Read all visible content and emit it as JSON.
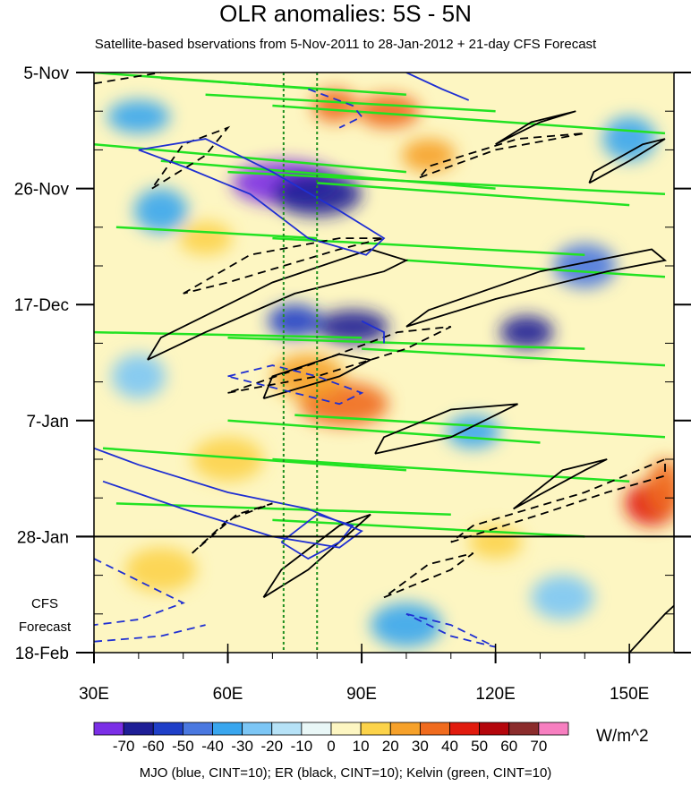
{
  "chart_data": {
    "type": "heatmap",
    "title": "OLR anomalies: 5S - 5N",
    "subtitle": "Satellite-based bservations from 5-Nov-2011 to 28-Jan-2012 + 21-day CFS Forecast",
    "x_tick_labels": [
      "30E",
      "60E",
      "90E",
      "120E",
      "150E"
    ],
    "x_ticks": [
      30,
      60,
      90,
      120,
      150
    ],
    "xlim": [
      30,
      160
    ],
    "y_tick_labels": [
      "5-Nov",
      "26-Nov",
      "17-Dec",
      "7-Jan",
      "28-Jan",
      "18-Feb"
    ],
    "y_ticks": [
      0,
      21,
      42,
      63,
      84,
      105
    ],
    "ylim": [
      0,
      105
    ],
    "observation_end_day": 84,
    "forecast_label_line1": "CFS",
    "forecast_label_line2": "Forecast",
    "reference_longitudes": [
      72.5,
      80
    ],
    "colorbar": {
      "levels": [
        "-70",
        "-60",
        "-50",
        "-40",
        "-30",
        "-20",
        "-10",
        "0",
        "10",
        "20",
        "30",
        "40",
        "50",
        "60",
        "70"
      ],
      "colors": [
        "#7b2fe6",
        "#1e1e96",
        "#1f3fc8",
        "#4a78e0",
        "#39a6ee",
        "#7cc6f5",
        "#b6e2f7",
        "#e9f7f7",
        "#fdf6c2",
        "#fcd34a",
        "#f6a12a",
        "#f06b1e",
        "#e11b0e",
        "#b4060c",
        "#8b2c2c",
        "#f77fc0"
      ],
      "units": "W/m^2"
    },
    "contours": {
      "legend": "MJO (blue, CINT=10); ER (black, CINT=10); Kelvin (green, CINT=10)",
      "mjo_color": "#1f2fd2",
      "er_color": "#000000",
      "kelvin_color": "#22e222"
    },
    "anomaly_features": [
      {
        "lon": 73,
        "day": 20,
        "value": -70,
        "rx": 12,
        "ry": 4
      },
      {
        "lon": 80,
        "day": 22,
        "value": -60,
        "rx": 10,
        "ry": 4
      },
      {
        "lon": 96,
        "day": 7,
        "value": 40,
        "rx": 7,
        "ry": 3
      },
      {
        "lon": 84,
        "day": 6,
        "value": 40,
        "rx": 5,
        "ry": 3
      },
      {
        "lon": 105,
        "day": 15,
        "value": 30,
        "rx": 6,
        "ry": 3
      },
      {
        "lon": 86,
        "day": 60,
        "value": 40,
        "rx": 10,
        "ry": 4
      },
      {
        "lon": 78,
        "day": 55,
        "value": 30,
        "rx": 8,
        "ry": 4
      },
      {
        "lon": 88,
        "day": 46,
        "value": -60,
        "rx": 8,
        "ry": 3
      },
      {
        "lon": 75,
        "day": 45,
        "value": -50,
        "rx": 6,
        "ry": 3
      },
      {
        "lon": 127,
        "day": 47,
        "value": -60,
        "rx": 6,
        "ry": 3
      },
      {
        "lon": 155,
        "day": 78,
        "value": 50,
        "rx": 6,
        "ry": 4
      },
      {
        "lon": 158,
        "day": 75,
        "value": 40,
        "rx": 4,
        "ry": 5
      },
      {
        "lon": 140,
        "day": 35,
        "value": -40,
        "rx": 7,
        "ry": 4
      },
      {
        "lon": 150,
        "day": 12,
        "value": -30,
        "rx": 6,
        "ry": 4
      },
      {
        "lon": 45,
        "day": 25,
        "value": -30,
        "rx": 6,
        "ry": 4
      },
      {
        "lon": 40,
        "day": 8,
        "value": -30,
        "rx": 7,
        "ry": 3
      },
      {
        "lon": 55,
        "day": 30,
        "value": 20,
        "rx": 6,
        "ry": 3
      },
      {
        "lon": 45,
        "day": 90,
        "value": 20,
        "rx": 8,
        "ry": 4
      },
      {
        "lon": 100,
        "day": 100,
        "value": -30,
        "rx": 8,
        "ry": 4
      },
      {
        "lon": 135,
        "day": 95,
        "value": -20,
        "rx": 7,
        "ry": 4
      },
      {
        "lon": 60,
        "day": 70,
        "value": 20,
        "rx": 8,
        "ry": 4
      },
      {
        "lon": 115,
        "day": 65,
        "value": -30,
        "rx": 6,
        "ry": 3
      },
      {
        "lon": 40,
        "day": 55,
        "value": -20,
        "rx": 6,
        "ry": 4
      },
      {
        "lon": 120,
        "day": 85,
        "value": 20,
        "rx": 6,
        "ry": 3
      }
    ],
    "er_contours": [
      {
        "dashed": false,
        "pts": [
          [
            42,
            52
          ],
          [
            55,
            47
          ],
          [
            75,
            40
          ],
          [
            95,
            36
          ],
          [
            100,
            34
          ],
          [
            92,
            32
          ],
          [
            70,
            38
          ],
          [
            45,
            48
          ],
          [
            42,
            52
          ]
        ]
      },
      {
        "dashed": false,
        "pts": [
          [
            100,
            46
          ],
          [
            120,
            41
          ],
          [
            145,
            36
          ],
          [
            158,
            34
          ],
          [
            155,
            32
          ],
          [
            130,
            36
          ],
          [
            105,
            43
          ],
          [
            100,
            46
          ]
        ]
      },
      {
        "dashed": true,
        "pts": [
          [
            50,
            40
          ],
          [
            65,
            33
          ],
          [
            85,
            30
          ],
          [
            95,
            30
          ],
          [
            85,
            32
          ],
          [
            60,
            38
          ],
          [
            50,
            40
          ]
        ]
      },
      {
        "dashed": true,
        "pts": [
          [
            60,
            58
          ],
          [
            80,
            55
          ],
          [
            100,
            50
          ],
          [
            110,
            46
          ],
          [
            98,
            47
          ],
          [
            78,
            53
          ],
          [
            60,
            58
          ]
        ]
      },
      {
        "dashed": false,
        "pts": [
          [
            93,
            69
          ],
          [
            110,
            66
          ],
          [
            125,
            60
          ],
          [
            110,
            61
          ],
          [
            95,
            66
          ],
          [
            93,
            69
          ]
        ]
      },
      {
        "dashed": false,
        "pts": [
          [
            68,
            59
          ],
          [
            85,
            55
          ],
          [
            92,
            52
          ],
          [
            85,
            51
          ],
          [
            70,
            55
          ],
          [
            68,
            59
          ]
        ]
      },
      {
        "dashed": false,
        "pts": [
          [
            120,
            13
          ],
          [
            130,
            9
          ],
          [
            138,
            7
          ],
          [
            128,
            9
          ],
          [
            120,
            13
          ]
        ]
      },
      {
        "dashed": false,
        "pts": [
          [
            141,
            20
          ],
          [
            150,
            16
          ],
          [
            158,
            12
          ],
          [
            153,
            13
          ],
          [
            142,
            18
          ],
          [
            141,
            20
          ]
        ]
      },
      {
        "dashed": true,
        "pts": [
          [
            43,
            21
          ],
          [
            55,
            15
          ],
          [
            60,
            10
          ],
          [
            50,
            13
          ],
          [
            43,
            21
          ]
        ]
      },
      {
        "dashed": true,
        "pts": [
          [
            103,
            19
          ],
          [
            120,
            14
          ],
          [
            140,
            11
          ],
          [
            125,
            12
          ],
          [
            105,
            17
          ],
          [
            103,
            19
          ]
        ]
      },
      {
        "dashed": false,
        "pts": [
          [
            124,
            79
          ],
          [
            140,
            72
          ],
          [
            145,
            70
          ],
          [
            135,
            72
          ],
          [
            124,
            79
          ]
        ]
      },
      {
        "dashed": true,
        "pts": [
          [
            110,
            85
          ],
          [
            130,
            80
          ],
          [
            145,
            76
          ],
          [
            158,
            73
          ],
          [
            158,
            70
          ],
          [
            140,
            76
          ],
          [
            115,
            82
          ],
          [
            110,
            85
          ]
        ]
      },
      {
        "dashed": true,
        "pts": [
          [
            52,
            87
          ],
          [
            60,
            81
          ],
          [
            70,
            78
          ],
          [
            62,
            80
          ],
          [
            52,
            87
          ]
        ]
      },
      {
        "dashed": false,
        "pts": [
          [
            68,
            95
          ],
          [
            78,
            90
          ],
          [
            85,
            85
          ],
          [
            92,
            80
          ],
          [
            85,
            82
          ],
          [
            72,
            90
          ],
          [
            68,
            95
          ]
        ]
      },
      {
        "dashed": true,
        "pts": [
          [
            95,
            95
          ],
          [
            110,
            90
          ],
          [
            115,
            87
          ],
          [
            105,
            89
          ],
          [
            95,
            95
          ]
        ]
      },
      {
        "dashed": false,
        "pts": [
          [
            150,
            105
          ],
          [
            158,
            98
          ],
          [
            162,
            95
          ]
        ]
      },
      {
        "dashed": true,
        "pts": [
          [
            30,
            2
          ],
          [
            45,
            0
          ]
        ]
      }
    ],
    "mjo_contours": [
      {
        "dashed": false,
        "pts": [
          [
            40,
            14
          ],
          [
            55,
            12
          ],
          [
            70,
            18
          ],
          [
            85,
            25
          ],
          [
            95,
            30
          ],
          [
            91,
            33
          ],
          [
            78,
            30
          ],
          [
            65,
            22
          ],
          [
            50,
            17
          ],
          [
            40,
            14
          ]
        ]
      },
      {
        "dashed": false,
        "pts": [
          [
            30,
            68
          ],
          [
            40,
            71
          ],
          [
            60,
            76
          ],
          [
            78,
            79
          ],
          [
            90,
            83
          ],
          [
            85,
            86
          ],
          [
            70,
            84
          ],
          [
            50,
            79
          ],
          [
            32,
            74
          ]
        ]
      },
      {
        "dashed": false,
        "pts": [
          [
            72,
            85
          ],
          [
            78,
            88
          ],
          [
            85,
            85
          ],
          [
            88,
            82
          ],
          [
            80,
            80
          ],
          [
            72,
            85
          ]
        ]
      },
      {
        "dashed": true,
        "pts": [
          [
            30,
            88
          ],
          [
            40,
            92
          ],
          [
            50,
            96
          ],
          [
            40,
            99
          ],
          [
            30,
            100
          ]
        ]
      },
      {
        "dashed": true,
        "pts": [
          [
            30,
            103
          ],
          [
            45,
            102
          ],
          [
            55,
            100
          ]
        ]
      },
      {
        "dashed": true,
        "pts": [
          [
            100,
            98
          ],
          [
            110,
            100
          ],
          [
            120,
            104
          ],
          [
            110,
            102
          ],
          [
            100,
            98
          ]
        ]
      },
      {
        "dashed": true,
        "pts": [
          [
            60,
            55
          ],
          [
            70,
            53
          ],
          [
            80,
            55
          ],
          [
            90,
            58
          ],
          [
            85,
            60
          ],
          [
            70,
            57
          ],
          [
            60,
            55
          ]
        ]
      },
      {
        "dashed": true,
        "pts": [
          [
            78,
            3
          ],
          [
            88,
            6
          ],
          [
            90,
            8
          ],
          [
            85,
            10
          ]
        ]
      },
      {
        "dashed": false,
        "pts": [
          [
            100,
            0
          ],
          [
            108,
            3
          ],
          [
            114,
            5
          ]
        ]
      },
      {
        "dashed": false,
        "pts": [
          [
            90,
            45
          ],
          [
            95,
            47
          ],
          [
            95,
            49
          ]
        ]
      }
    ],
    "kelvin_lines": [
      [
        [
          30,
          0
        ],
        [
          80,
          3
        ]
      ],
      [
        [
          45,
          1
        ],
        [
          100,
          4
        ]
      ],
      [
        [
          55,
          4
        ],
        [
          120,
          7
        ]
      ],
      [
        [
          70,
          6
        ],
        [
          158,
          11
        ]
      ],
      [
        [
          30,
          13
        ],
        [
          100,
          18
        ]
      ],
      [
        [
          45,
          16
        ],
        [
          120,
          21
        ]
      ],
      [
        [
          60,
          18
        ],
        [
          158,
          22
        ]
      ],
      [
        [
          80,
          20
        ],
        [
          150,
          24
        ]
      ],
      [
        [
          35,
          28
        ],
        [
          80,
          30
        ]
      ],
      [
        [
          70,
          30
        ],
        [
          140,
          33
        ]
      ],
      [
        [
          100,
          34
        ],
        [
          158,
          37
        ]
      ],
      [
        [
          30,
          47
        ],
        [
          90,
          48
        ]
      ],
      [
        [
          60,
          48
        ],
        [
          140,
          50
        ]
      ],
      [
        [
          90,
          50
        ],
        [
          158,
          53
        ]
      ],
      [
        [
          60,
          63
        ],
        [
          130,
          67
        ]
      ],
      [
        [
          75,
          62
        ],
        [
          158,
          66
        ]
      ],
      [
        [
          32,
          68
        ],
        [
          100,
          72
        ]
      ],
      [
        [
          70,
          70
        ],
        [
          150,
          74
        ]
      ],
      [
        [
          35,
          78
        ],
        [
          110,
          80
        ]
      ],
      [
        [
          70,
          81
        ],
        [
          140,
          84
        ]
      ]
    ]
  }
}
